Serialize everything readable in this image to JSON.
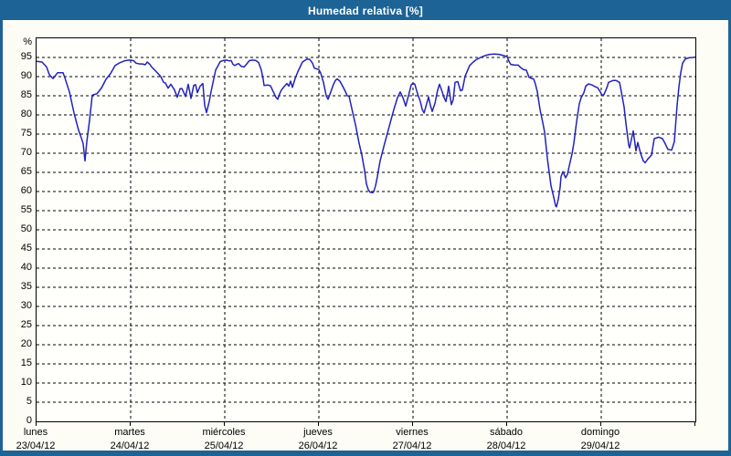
{
  "window": {
    "title": "Humedad relativa [%]"
  },
  "colors": {
    "titlebar_bg": "#1d6396",
    "title_text": "#ffffff",
    "window_bg": "#fdfdf6",
    "plot_bg": "#fffffc",
    "line": "#2222bd",
    "grid": "#000000",
    "axis_text": "#000000"
  },
  "chart_data": {
    "type": "line",
    "title": "Humedad relativa [%]",
    "ylabel": "%",
    "xlabel": "",
    "ylim": [
      0,
      100
    ],
    "ytick_step": 5,
    "ytick_label_min": 0,
    "ytick_label_max": 95,
    "xlim_days": [
      0,
      7
    ],
    "grid": "dashed",
    "legend_position": "none",
    "x_axis_days": [
      {
        "name": "lunes",
        "date": "23/04/12"
      },
      {
        "name": "martes",
        "date": "24/04/12"
      },
      {
        "name": "miércoles",
        "date": "25/04/12"
      },
      {
        "name": "jueves",
        "date": "26/04/12"
      },
      {
        "name": "viernes",
        "date": "27/04/12"
      },
      {
        "name": "sábado",
        "date": "28/04/12"
      },
      {
        "name": "domingo",
        "date": "29/04/12"
      }
    ],
    "series": [
      {
        "name": "Humedad relativa",
        "unit": "%",
        "points": [
          [
            0.0,
            94.0
          ],
          [
            0.058,
            93.8
          ],
          [
            0.107,
            92.5
          ],
          [
            0.136,
            90.5
          ],
          [
            0.175,
            89.5
          ],
          [
            0.223,
            91.0
          ],
          [
            0.282,
            91.0
          ],
          [
            0.301,
            89.7
          ],
          [
            0.35,
            86.0
          ],
          [
            0.398,
            80.5
          ],
          [
            0.447,
            76.0
          ],
          [
            0.476,
            74.0
          ],
          [
            0.495,
            72.5
          ],
          [
            0.515,
            68.0
          ],
          [
            0.534,
            73.0
          ],
          [
            0.563,
            78.6
          ],
          [
            0.592,
            85.2
          ],
          [
            0.641,
            85.5
          ],
          [
            0.689,
            87.0
          ],
          [
            0.738,
            89.3
          ],
          [
            0.786,
            90.8
          ],
          [
            0.835,
            92.9
          ],
          [
            0.883,
            93.6
          ],
          [
            0.932,
            94.1
          ],
          [
            0.981,
            94.3
          ],
          [
            1.029,
            94.2
          ],
          [
            1.058,
            93.5
          ],
          [
            1.097,
            93.3
          ],
          [
            1.126,
            93.3
          ],
          [
            1.155,
            93.1
          ],
          [
            1.175,
            93.8
          ],
          [
            1.204,
            93.2
          ],
          [
            1.223,
            92.5
          ],
          [
            1.272,
            91.3
          ],
          [
            1.32,
            90.0
          ],
          [
            1.35,
            88.5
          ],
          [
            1.369,
            88.3
          ],
          [
            1.398,
            87.0
          ],
          [
            1.427,
            88.0
          ],
          [
            1.466,
            86.5
          ],
          [
            1.495,
            84.6
          ],
          [
            1.524,
            86.8
          ],
          [
            1.544,
            86.9
          ],
          [
            1.563,
            85.9
          ],
          [
            1.583,
            84.8
          ],
          [
            1.612,
            88.0
          ],
          [
            1.641,
            84.3
          ],
          [
            1.67,
            87.7
          ],
          [
            1.689,
            87.9
          ],
          [
            1.709,
            85.8
          ],
          [
            1.738,
            87.5
          ],
          [
            1.767,
            88.2
          ],
          [
            1.786,
            82.5
          ],
          [
            1.806,
            80.6
          ],
          [
            1.835,
            83.5
          ],
          [
            1.854,
            86.1
          ],
          [
            1.903,
            91.7
          ],
          [
            1.951,
            93.9
          ],
          [
            1.981,
            94.2
          ],
          [
            2.019,
            94.3
          ],
          [
            2.049,
            94.1
          ],
          [
            2.068,
            94.2
          ],
          [
            2.087,
            93.2
          ],
          [
            2.107,
            92.9
          ],
          [
            2.126,
            93.2
          ],
          [
            2.146,
            93.4
          ],
          [
            2.175,
            92.7
          ],
          [
            2.204,
            92.5
          ],
          [
            2.233,
            93.3
          ],
          [
            2.262,
            94.2
          ],
          [
            2.301,
            94.3
          ],
          [
            2.33,
            94.2
          ],
          [
            2.359,
            93.7
          ],
          [
            2.388,
            91.7
          ],
          [
            2.408,
            89.3
          ],
          [
            2.417,
            87.7
          ],
          [
            2.456,
            87.8
          ],
          [
            2.485,
            87.6
          ],
          [
            2.515,
            86.1
          ],
          [
            2.544,
            84.6
          ],
          [
            2.563,
            84.1
          ],
          [
            2.583,
            85.5
          ],
          [
            2.602,
            86.5
          ],
          [
            2.631,
            87.4
          ],
          [
            2.66,
            88.2
          ],
          [
            2.68,
            87.5
          ],
          [
            2.699,
            88.8
          ],
          [
            2.718,
            87.2
          ],
          [
            2.748,
            89.5
          ],
          [
            2.777,
            91.3
          ],
          [
            2.825,
            93.8
          ],
          [
            2.874,
            94.6
          ],
          [
            2.903,
            94.5
          ],
          [
            2.932,
            93.5
          ],
          [
            2.951,
            92.2
          ],
          [
            2.981,
            92.0
          ],
          [
            3.0,
            91.8
          ],
          [
            3.019,
            90.9
          ],
          [
            3.049,
            88.5
          ],
          [
            3.078,
            85.0
          ],
          [
            3.097,
            84.1
          ],
          [
            3.126,
            86.0
          ],
          [
            3.155,
            88.0
          ],
          [
            3.175,
            89.0
          ],
          [
            3.194,
            89.4
          ],
          [
            3.223,
            88.8
          ],
          [
            3.252,
            87.5
          ],
          [
            3.282,
            86.1
          ],
          [
            3.301,
            85.0
          ],
          [
            3.32,
            84.9
          ],
          [
            3.359,
            80.6
          ],
          [
            3.388,
            77.5
          ],
          [
            3.427,
            72.6
          ],
          [
            3.456,
            69.5
          ],
          [
            3.485,
            65.5
          ],
          [
            3.505,
            62.0
          ],
          [
            3.524,
            60.5
          ],
          [
            3.544,
            59.8
          ],
          [
            3.573,
            59.7
          ],
          [
            3.583,
            60.0
          ],
          [
            3.602,
            61.5
          ],
          [
            3.621,
            63.9
          ],
          [
            3.65,
            67.9
          ],
          [
            3.699,
            72.6
          ],
          [
            3.748,
            77.0
          ],
          [
            3.796,
            81.4
          ],
          [
            3.835,
            84.5
          ],
          [
            3.864,
            86.0
          ],
          [
            3.893,
            84.5
          ],
          [
            3.922,
            82.3
          ],
          [
            3.951,
            85.0
          ],
          [
            3.981,
            87.8
          ],
          [
            4.0,
            88.3
          ],
          [
            4.019,
            88.0
          ],
          [
            4.049,
            85.5
          ],
          [
            4.078,
            83.5
          ],
          [
            4.097,
            81.5
          ],
          [
            4.117,
            80.5
          ],
          [
            4.146,
            83.0
          ],
          [
            4.165,
            84.7
          ],
          [
            4.184,
            82.5
          ],
          [
            4.204,
            80.9
          ],
          [
            4.233,
            83.0
          ],
          [
            4.262,
            86.5
          ],
          [
            4.282,
            88.0
          ],
          [
            4.311,
            86.0
          ],
          [
            4.33,
            84.5
          ],
          [
            4.35,
            83.5
          ],
          [
            4.369,
            86.0
          ],
          [
            4.379,
            87.5
          ],
          [
            4.408,
            82.7
          ],
          [
            4.427,
            84.0
          ],
          [
            4.447,
            88.5
          ],
          [
            4.476,
            88.7
          ],
          [
            4.505,
            86.3
          ],
          [
            4.524,
            86.5
          ],
          [
            4.553,
            90.1
          ],
          [
            4.602,
            92.9
          ],
          [
            4.641,
            93.8
          ],
          [
            4.67,
            94.4
          ],
          [
            4.718,
            95.0
          ],
          [
            4.767,
            95.5
          ],
          [
            4.816,
            95.8
          ],
          [
            4.864,
            95.9
          ],
          [
            4.913,
            95.8
          ],
          [
            4.961,
            95.5
          ],
          [
            5.0,
            95.2
          ],
          [
            5.019,
            94.0
          ],
          [
            5.039,
            93.2
          ],
          [
            5.078,
            93.0
          ],
          [
            5.117,
            93.0
          ],
          [
            5.146,
            92.3
          ],
          [
            5.175,
            91.8
          ],
          [
            5.204,
            91.7
          ],
          [
            5.233,
            89.8
          ],
          [
            5.262,
            89.5
          ],
          [
            5.282,
            89.4
          ],
          [
            5.301,
            88.0
          ],
          [
            5.32,
            86.1
          ],
          [
            5.35,
            81.4
          ],
          [
            5.379,
            78.0
          ],
          [
            5.398,
            75.5
          ],
          [
            5.427,
            68.7
          ],
          [
            5.466,
            61.5
          ],
          [
            5.495,
            58.5
          ],
          [
            5.515,
            56.3
          ],
          [
            5.524,
            56.0
          ],
          [
            5.544,
            58.0
          ],
          [
            5.563,
            61.1
          ],
          [
            5.573,
            63.9
          ],
          [
            5.592,
            65.2
          ],
          [
            5.621,
            63.6
          ],
          [
            5.641,
            64.5
          ],
          [
            5.66,
            66.7
          ],
          [
            5.689,
            69.8
          ],
          [
            5.709,
            72.6
          ],
          [
            5.738,
            78.2
          ],
          [
            5.767,
            82.9
          ],
          [
            5.786,
            84.5
          ],
          [
            5.816,
            85.8
          ],
          [
            5.835,
            87.5
          ],
          [
            5.864,
            88.1
          ],
          [
            5.903,
            87.8
          ],
          [
            5.932,
            87.4
          ],
          [
            5.961,
            87.1
          ],
          [
            5.99,
            86.0
          ],
          [
            6.01,
            85.1
          ],
          [
            6.029,
            85.3
          ],
          [
            6.058,
            87.0
          ],
          [
            6.078,
            88.5
          ],
          [
            6.126,
            89.0
          ],
          [
            6.155,
            89.0
          ],
          [
            6.194,
            88.5
          ],
          [
            6.204,
            87.3
          ],
          [
            6.243,
            82.1
          ],
          [
            6.262,
            77.8
          ],
          [
            6.291,
            72.2
          ],
          [
            6.301,
            71.4
          ],
          [
            6.34,
            75.8
          ],
          [
            6.369,
            70.6
          ],
          [
            6.388,
            72.8
          ],
          [
            6.417,
            70.0
          ],
          [
            6.447,
            68.0
          ],
          [
            6.466,
            67.5
          ],
          [
            6.495,
            68.5
          ],
          [
            6.534,
            69.5
          ],
          [
            6.563,
            73.8
          ],
          [
            6.612,
            74.2
          ],
          [
            6.65,
            73.8
          ],
          [
            6.68,
            72.5
          ],
          [
            6.709,
            71.0
          ],
          [
            6.748,
            70.8
          ],
          [
            6.777,
            73.0
          ],
          [
            6.786,
            76.2
          ],
          [
            6.806,
            82.5
          ],
          [
            6.825,
            87.3
          ],
          [
            6.845,
            91.0
          ],
          [
            6.864,
            93.5
          ],
          [
            6.893,
            94.6
          ],
          [
            6.932,
            94.9
          ],
          [
            6.971,
            95.0
          ],
          [
            7.0,
            95.1
          ]
        ]
      }
    ]
  }
}
